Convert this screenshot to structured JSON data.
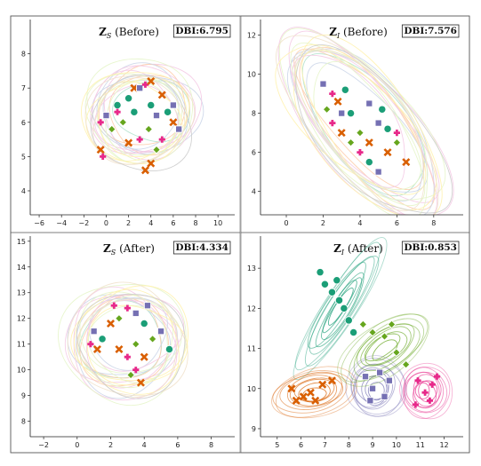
{
  "chart_data": [
    {
      "type": "scatter",
      "panel": "top-left",
      "title_symbol": "Z",
      "title_sub": "S",
      "title_suffix": "(Before)",
      "dbi": "DBI:6.795",
      "xlim": [
        -6.8,
        11.5
      ],
      "ylim": [
        3.3,
        9.0
      ],
      "xticks": [
        -6,
        -4,
        -2,
        0,
        2,
        4,
        6,
        8,
        10
      ],
      "yticks": [
        4,
        5,
        6,
        7,
        8
      ],
      "clusters": [
        {
          "color": "#1b9e77",
          "center": [
            4.0,
            6.3
          ],
          "spread": [
            2.6,
            0.75
          ],
          "angle": 0
        },
        {
          "color": "#d95f02",
          "center": [
            3.2,
            6.4
          ],
          "spread": [
            2.8,
            0.85
          ],
          "angle": 0
        },
        {
          "color": "#7570b3",
          "center": [
            2.5,
            6.2
          ],
          "spread": [
            2.7,
            0.8
          ],
          "angle": 0
        },
        {
          "color": "#e7298a",
          "center": [
            2.8,
            6.1
          ],
          "spread": [
            2.7,
            0.8
          ],
          "angle": 0
        },
        {
          "color": "#66a61e",
          "center": [
            3.0,
            6.0
          ],
          "spread": [
            2.6,
            0.75
          ],
          "angle": 0
        }
      ],
      "points": [
        {
          "x": 0.0,
          "y": 6.2,
          "c": 2
        },
        {
          "x": -0.5,
          "y": 6.0,
          "c": 3
        },
        {
          "x": 0.5,
          "y": 5.8,
          "c": 4
        },
        {
          "x": 1.5,
          "y": 6.0,
          "c": 4
        },
        {
          "x": 2.0,
          "y": 6.7,
          "c": 0
        },
        {
          "x": 2.5,
          "y": 7.0,
          "c": 1
        },
        {
          "x": 3.0,
          "y": 7.0,
          "c": 2
        },
        {
          "x": 3.5,
          "y": 7.1,
          "c": 3
        },
        {
          "x": 4.0,
          "y": 7.2,
          "c": 1
        },
        {
          "x": 4.0,
          "y": 6.5,
          "c": 0
        },
        {
          "x": 4.5,
          "y": 6.2,
          "c": 2
        },
        {
          "x": 3.8,
          "y": 5.8,
          "c": 4
        },
        {
          "x": 3.0,
          "y": 5.5,
          "c": 3
        },
        {
          "x": 5.0,
          "y": 6.8,
          "c": 1
        },
        {
          "x": 5.5,
          "y": 6.3,
          "c": 0
        },
        {
          "x": 6.0,
          "y": 6.5,
          "c": 2
        },
        {
          "x": 6.0,
          "y": 6.0,
          "c": 1
        },
        {
          "x": 5.0,
          "y": 5.5,
          "c": 3
        },
        {
          "x": -0.5,
          "y": 5.2,
          "c": 1
        },
        {
          "x": -0.3,
          "y": 5.0,
          "c": 3
        },
        {
          "x": 3.5,
          "y": 4.6,
          "c": 1
        },
        {
          "x": 4.0,
          "y": 4.8,
          "c": 1
        },
        {
          "x": 2.0,
          "y": 5.4,
          "c": 1
        },
        {
          "x": 1.0,
          "y": 6.5,
          "c": 0
        },
        {
          "x": 1.0,
          "y": 6.3,
          "c": 3
        },
        {
          "x": 4.5,
          "y": 5.2,
          "c": 4
        },
        {
          "x": 6.5,
          "y": 5.8,
          "c": 2
        },
        {
          "x": 2.5,
          "y": 6.3,
          "c": 0
        }
      ]
    },
    {
      "type": "scatter",
      "panel": "top-right",
      "title_symbol": "Z",
      "title_sub": "I",
      "title_suffix": "(Before)",
      "dbi": "DBI:7.576",
      "xlim": [
        -1.4,
        9.6
      ],
      "ylim": [
        2.8,
        12.8
      ],
      "xticks": [
        0,
        2,
        4,
        6,
        8
      ],
      "yticks": [
        4,
        6,
        8,
        10,
        12
      ],
      "clusters": [
        {
          "color": "#1b9e77",
          "center": [
            4.3,
            7.3
          ],
          "spread": [
            1.5,
            3.4
          ],
          "angle": -38
        },
        {
          "color": "#d95f02",
          "center": [
            4.0,
            7.6
          ],
          "spread": [
            1.4,
            3.3
          ],
          "angle": -40
        },
        {
          "color": "#7570b3",
          "center": [
            4.2,
            7.2
          ],
          "spread": [
            1.5,
            3.3
          ],
          "angle": -38
        },
        {
          "color": "#e7298a",
          "center": [
            3.6,
            7.8
          ],
          "spread": [
            1.4,
            3.1
          ],
          "angle": -42
        },
        {
          "color": "#66a61e",
          "center": [
            4.5,
            7.0
          ],
          "spread": [
            1.5,
            3.2
          ],
          "angle": -38
        }
      ],
      "points": [
        {
          "x": 2.0,
          "y": 9.5,
          "c": 2
        },
        {
          "x": 2.5,
          "y": 9.0,
          "c": 3
        },
        {
          "x": 2.8,
          "y": 8.6,
          "c": 1
        },
        {
          "x": 3.0,
          "y": 8.0,
          "c": 2
        },
        {
          "x": 3.5,
          "y": 8.0,
          "c": 0
        },
        {
          "x": 2.5,
          "y": 7.5,
          "c": 3
        },
        {
          "x": 4.0,
          "y": 7.0,
          "c": 4
        },
        {
          "x": 4.5,
          "y": 6.5,
          "c": 1
        },
        {
          "x": 5.0,
          "y": 7.5,
          "c": 2
        },
        {
          "x": 5.5,
          "y": 7.2,
          "c": 0
        },
        {
          "x": 6.0,
          "y": 7.0,
          "c": 3
        },
        {
          "x": 6.0,
          "y": 6.5,
          "c": 4
        },
        {
          "x": 5.5,
          "y": 6.0,
          "c": 1
        },
        {
          "x": 4.5,
          "y": 5.5,
          "c": 0
        },
        {
          "x": 5.0,
          "y": 5.0,
          "c": 2
        },
        {
          "x": 3.5,
          "y": 6.5,
          "c": 4
        },
        {
          "x": 3.0,
          "y": 7.0,
          "c": 1
        },
        {
          "x": 4.5,
          "y": 8.5,
          "c": 2
        },
        {
          "x": 5.2,
          "y": 8.2,
          "c": 0
        },
        {
          "x": 2.2,
          "y": 8.2,
          "c": 4
        },
        {
          "x": 6.5,
          "y": 5.5,
          "c": 1
        },
        {
          "x": 4.0,
          "y": 6.0,
          "c": 3
        },
        {
          "x": 3.2,
          "y": 9.2,
          "c": 0
        }
      ]
    },
    {
      "type": "scatter",
      "panel": "bottom-left",
      "title_symbol": "Z",
      "title_sub": "S",
      "title_suffix": "(After)",
      "dbi": "DBI:4.334",
      "xlim": [
        -2.8,
        9.4
      ],
      "ylim": [
        7.4,
        15.2
      ],
      "xticks": [
        -2,
        0,
        2,
        4,
        6,
        8
      ],
      "yticks": [
        8,
        9,
        10,
        11,
        12,
        13,
        14,
        15
      ],
      "clusters": [
        {
          "color": "#1b9e77",
          "center": [
            2.5,
            11.2
          ],
          "spread": [
            1.9,
            1.05
          ],
          "angle": 0
        },
        {
          "color": "#d95f02",
          "center": [
            2.8,
            11.0
          ],
          "spread": [
            2.0,
            1.4
          ],
          "angle": 0
        },
        {
          "color": "#7570b3",
          "center": [
            3.2,
            11.4
          ],
          "spread": [
            1.9,
            1.05
          ],
          "angle": 0
        },
        {
          "color": "#e7298a",
          "center": [
            3.0,
            11.1
          ],
          "spread": [
            2.0,
            1.2
          ],
          "angle": 0
        },
        {
          "color": "#66a61e",
          "center": [
            3.3,
            11.0
          ],
          "spread": [
            1.9,
            1.1
          ],
          "angle": 0
        }
      ],
      "points": [
        {
          "x": 1.0,
          "y": 11.5,
          "c": 2
        },
        {
          "x": 1.5,
          "y": 11.2,
          "c": 0
        },
        {
          "x": 2.0,
          "y": 11.8,
          "c": 1
        },
        {
          "x": 2.5,
          "y": 12.0,
          "c": 4
        },
        {
          "x": 3.0,
          "y": 12.4,
          "c": 3
        },
        {
          "x": 3.5,
          "y": 12.2,
          "c": 2
        },
        {
          "x": 4.0,
          "y": 11.8,
          "c": 0
        },
        {
          "x": 3.5,
          "y": 11.0,
          "c": 4
        },
        {
          "x": 3.0,
          "y": 10.5,
          "c": 3
        },
        {
          "x": 2.5,
          "y": 10.8,
          "c": 1
        },
        {
          "x": 4.5,
          "y": 11.2,
          "c": 4
        },
        {
          "x": 5.0,
          "y": 11.5,
          "c": 2
        },
        {
          "x": 3.5,
          "y": 10.0,
          "c": 3
        },
        {
          "x": 3.8,
          "y": 9.5,
          "c": 1
        },
        {
          "x": 4.0,
          "y": 10.5,
          "c": 1
        },
        {
          "x": 1.2,
          "y": 10.8,
          "c": 1
        },
        {
          "x": 0.8,
          "y": 11.0,
          "c": 3
        },
        {
          "x": 2.2,
          "y": 12.5,
          "c": 3
        },
        {
          "x": 4.2,
          "y": 12.5,
          "c": 2
        },
        {
          "x": 5.5,
          "y": 10.8,
          "c": 0
        },
        {
          "x": 3.2,
          "y": 9.8,
          "c": 4
        }
      ]
    },
    {
      "type": "scatter",
      "panel": "bottom-right",
      "title_symbol": "Z",
      "title_sub": "I",
      "title_suffix": "(After)",
      "dbi": "DBI:0.853",
      "xlim": [
        4.3,
        12.8
      ],
      "ylim": [
        8.8,
        13.8
      ],
      "xticks": [
        5,
        6,
        7,
        8,
        9,
        10,
        11,
        12
      ],
      "yticks": [
        9,
        10,
        11,
        12,
        13
      ],
      "clusters": [
        {
          "color": "#1b9e77",
          "center": [
            7.6,
            12.0
          ],
          "spread": [
            0.45,
            1.3
          ],
          "angle": 32
        },
        {
          "color": "#d95f02",
          "center": [
            6.5,
            9.9
          ],
          "spread": [
            1.2,
            0.38
          ],
          "angle": -12
        },
        {
          "color": "#7570b3",
          "center": [
            9.1,
            10.0
          ],
          "spread": [
            0.8,
            0.5
          ],
          "angle": 0
        },
        {
          "color": "#e7298a",
          "center": [
            11.2,
            9.9
          ],
          "spread": [
            0.7,
            0.45
          ],
          "angle": 0
        },
        {
          "color": "#66a61e",
          "center": [
            9.5,
            11.0
          ],
          "spread": [
            1.45,
            0.4
          ],
          "angle": -35
        }
      ],
      "points": [
        {
          "x": 6.8,
          "y": 12.9,
          "c": 0
        },
        {
          "x": 7.0,
          "y": 12.6,
          "c": 0
        },
        {
          "x": 7.3,
          "y": 12.4,
          "c": 0
        },
        {
          "x": 7.6,
          "y": 12.2,
          "c": 0
        },
        {
          "x": 7.8,
          "y": 12.0,
          "c": 0
        },
        {
          "x": 8.0,
          "y": 11.7,
          "c": 0
        },
        {
          "x": 8.2,
          "y": 11.4,
          "c": 0
        },
        {
          "x": 7.5,
          "y": 12.7,
          "c": 0
        },
        {
          "x": 5.8,
          "y": 9.7,
          "c": 1
        },
        {
          "x": 6.1,
          "y": 9.8,
          "c": 1
        },
        {
          "x": 6.4,
          "y": 9.9,
          "c": 1
        },
        {
          "x": 6.6,
          "y": 9.7,
          "c": 1
        },
        {
          "x": 6.9,
          "y": 10.1,
          "c": 1
        },
        {
          "x": 7.3,
          "y": 10.2,
          "c": 1
        },
        {
          "x": 5.6,
          "y": 10.0,
          "c": 1
        },
        {
          "x": 8.7,
          "y": 10.3,
          "c": 2
        },
        {
          "x": 9.0,
          "y": 10.0,
          "c": 2
        },
        {
          "x": 9.3,
          "y": 10.4,
          "c": 2
        },
        {
          "x": 9.5,
          "y": 9.8,
          "c": 2
        },
        {
          "x": 8.9,
          "y": 9.7,
          "c": 2
        },
        {
          "x": 9.7,
          "y": 10.2,
          "c": 2
        },
        {
          "x": 10.9,
          "y": 10.2,
          "c": 3
        },
        {
          "x": 11.2,
          "y": 9.9,
          "c": 3
        },
        {
          "x": 11.5,
          "y": 10.1,
          "c": 3
        },
        {
          "x": 11.4,
          "y": 9.7,
          "c": 3
        },
        {
          "x": 10.8,
          "y": 9.6,
          "c": 3
        },
        {
          "x": 11.7,
          "y": 10.3,
          "c": 3
        },
        {
          "x": 8.6,
          "y": 11.6,
          "c": 4
        },
        {
          "x": 9.0,
          "y": 11.4,
          "c": 4
        },
        {
          "x": 9.5,
          "y": 11.3,
          "c": 4
        },
        {
          "x": 10.0,
          "y": 10.9,
          "c": 4
        },
        {
          "x": 10.4,
          "y": 10.6,
          "c": 4
        },
        {
          "x": 9.8,
          "y": 11.6,
          "c": 4
        }
      ]
    }
  ]
}
